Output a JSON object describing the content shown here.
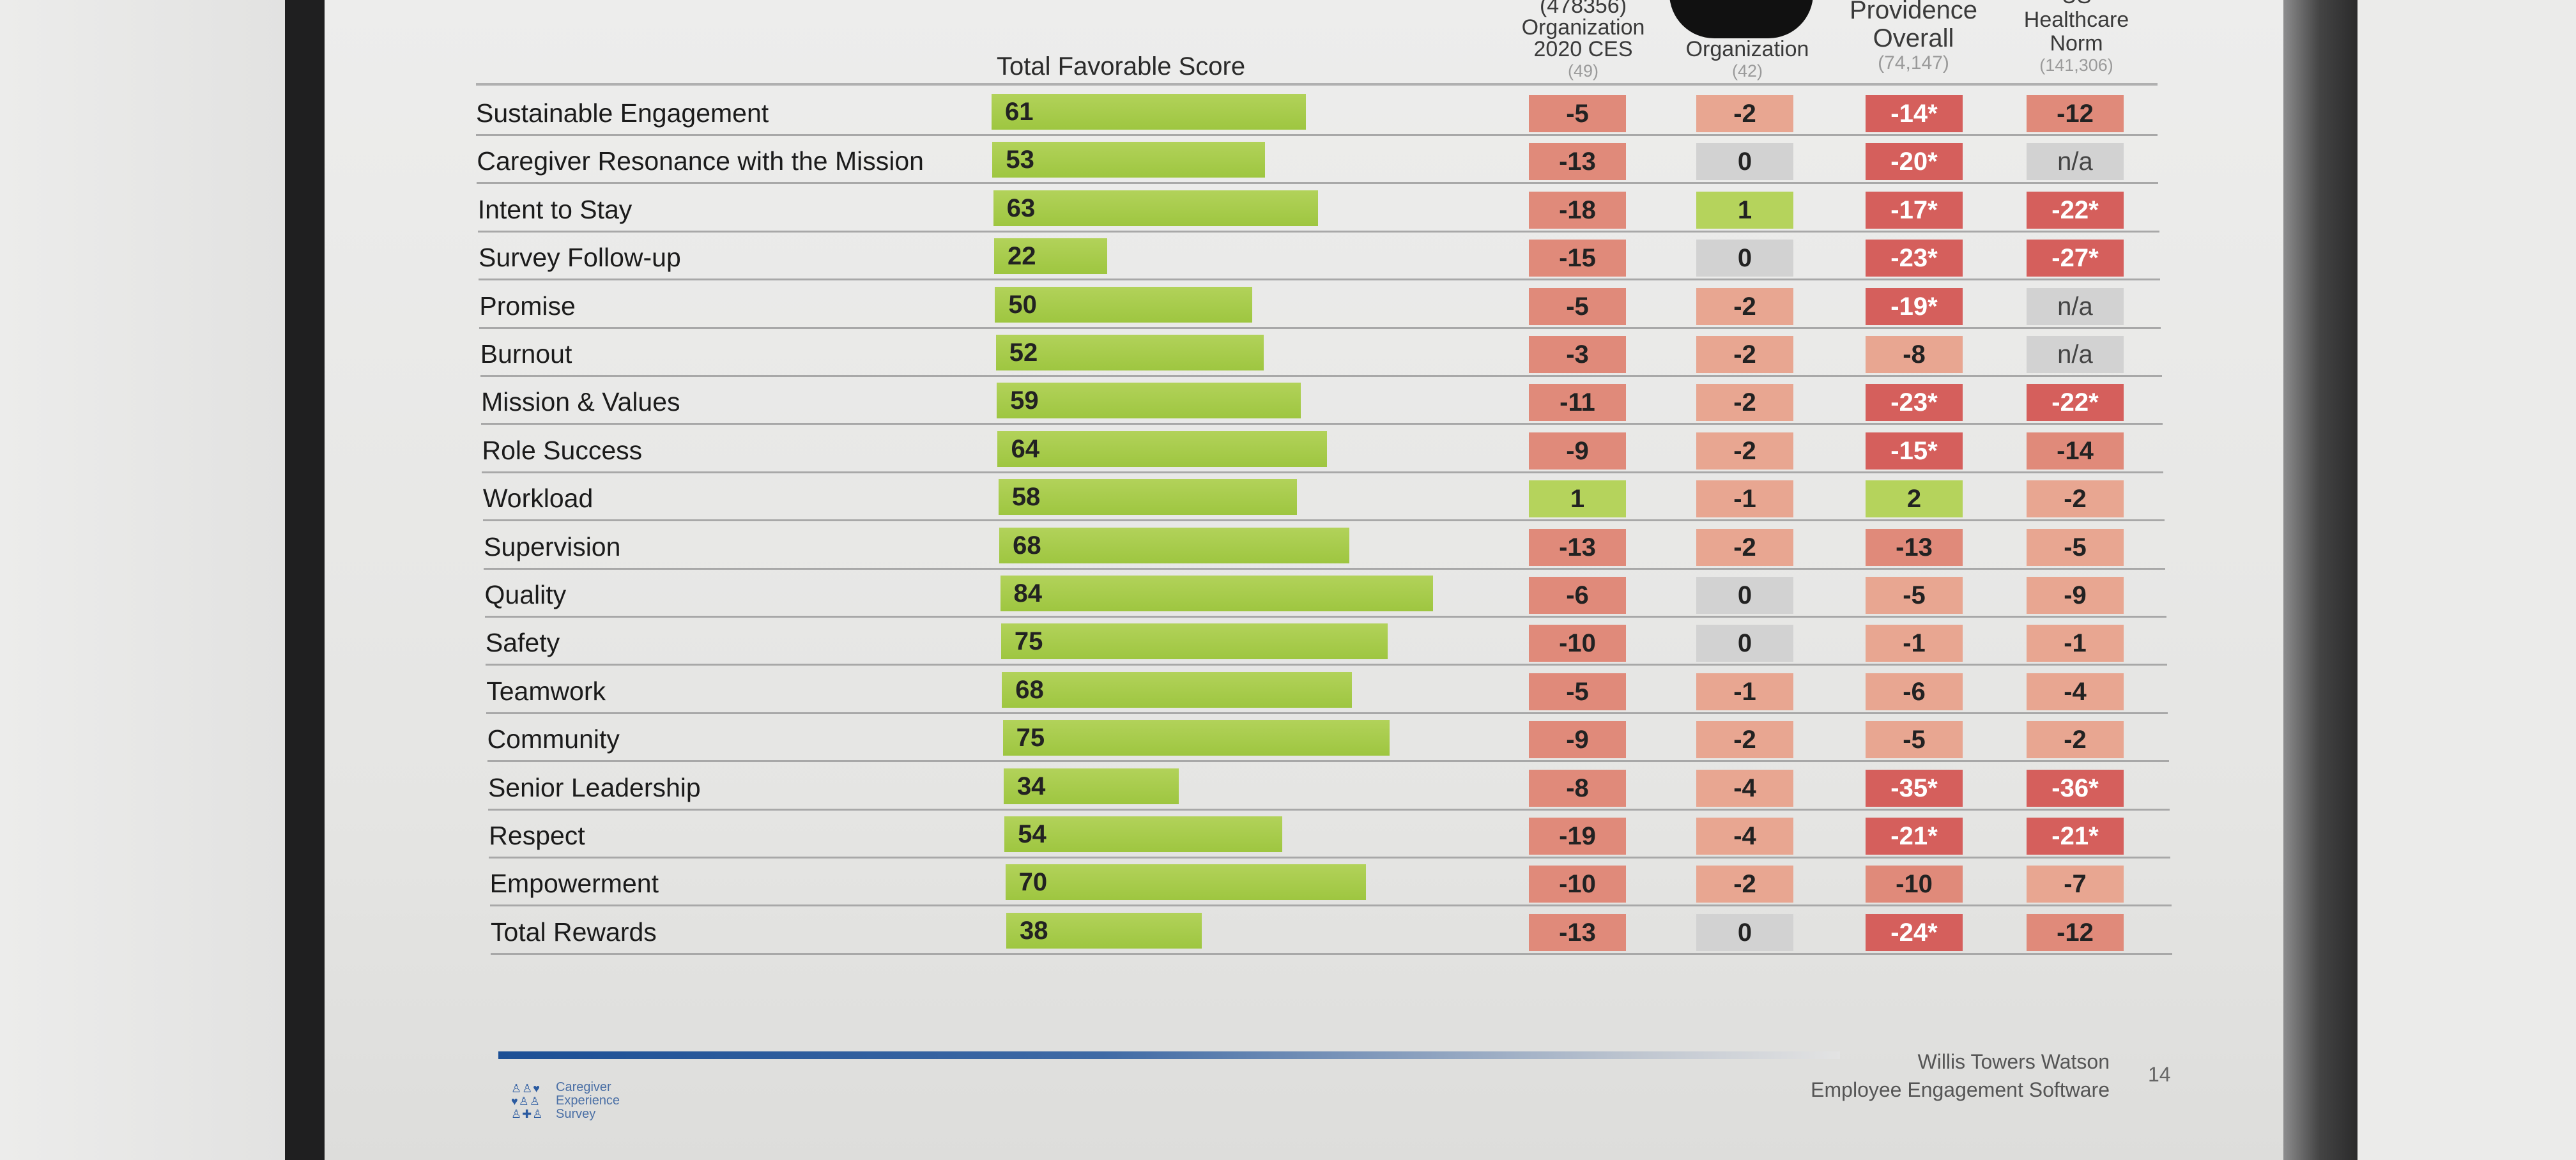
{
  "header": {
    "total_favorable": "Total Favorable Score",
    "columns": [
      {
        "lines": [
          "(478356)",
          "Organization",
          "2020 CES"
        ],
        "n": "(49)"
      },
      {
        "lines": [
          "Organization"
        ],
        "n": "(42)"
      },
      {
        "lines": [
          "Providence",
          "Overall"
        ],
        "n": "(74,147)"
      },
      {
        "lines": [
          "US",
          "Healthcare",
          "Norm"
        ],
        "n": "(141,306)"
      }
    ]
  },
  "rows": [
    {
      "label": "Sustainable Engagement",
      "score": 61,
      "d": [
        "-5",
        "-2",
        "-14*",
        "-12"
      ]
    },
    {
      "label": "Caregiver Resonance with the Mission",
      "score": 53,
      "d": [
        "-13",
        "0",
        "-20*",
        "n/a"
      ]
    },
    {
      "label": "Intent to Stay",
      "score": 63,
      "d": [
        "-18",
        "1",
        "-17*",
        "-22*"
      ]
    },
    {
      "label": "Survey Follow-up",
      "score": 22,
      "d": [
        "-15",
        "0",
        "-23*",
        "-27*"
      ]
    },
    {
      "label": "Promise",
      "score": 50,
      "d": [
        "-5",
        "-2",
        "-19*",
        "n/a"
      ]
    },
    {
      "label": "Burnout",
      "score": 52,
      "d": [
        "-3",
        "-2",
        "-8",
        "n/a"
      ]
    },
    {
      "label": "Mission & Values",
      "score": 59,
      "d": [
        "-11",
        "-2",
        "-23*",
        "-22*"
      ]
    },
    {
      "label": "Role Success",
      "score": 64,
      "d": [
        "-9",
        "-2",
        "-15*",
        "-14"
      ]
    },
    {
      "label": "Workload",
      "score": 58,
      "d": [
        "1",
        "-1",
        "2",
        "-2"
      ]
    },
    {
      "label": "Supervision",
      "score": 68,
      "d": [
        "-13",
        "-2",
        "-13",
        "-5"
      ]
    },
    {
      "label": "Quality",
      "score": 84,
      "d": [
        "-6",
        "0",
        "-5",
        "-9"
      ]
    },
    {
      "label": "Safety",
      "score": 75,
      "d": [
        "-10",
        "0",
        "-1",
        "-1"
      ]
    },
    {
      "label": "Teamwork",
      "score": 68,
      "d": [
        "-5",
        "-1",
        "-6",
        "-4"
      ]
    },
    {
      "label": "Community",
      "score": 75,
      "d": [
        "-9",
        "-2",
        "-5",
        "-2"
      ]
    },
    {
      "label": "Senior Leadership",
      "score": 34,
      "d": [
        "-8",
        "-4",
        "-35*",
        "-36*"
      ]
    },
    {
      "label": "Respect",
      "score": 54,
      "d": [
        "-19",
        "-4",
        "-21*",
        "-21*"
      ]
    },
    {
      "label": "Empowerment",
      "score": 70,
      "d": [
        "-10",
        "-2",
        "-10",
        "-7"
      ]
    },
    {
      "label": "Total Rewards",
      "score": 38,
      "d": [
        "-13",
        "0",
        "-24*",
        "-12"
      ]
    }
  ],
  "footer": {
    "logo_text": [
      "Caregiver",
      "Experience",
      "Survey"
    ],
    "company": "Willis Towers Watson",
    "product": "Employee Engagement Software",
    "page_number": "14"
  },
  "colors": {
    "bar": "#a7cc4c",
    "positive": "#b5d35c",
    "neutral": "#d2d2d2",
    "light_red": "#e8a691",
    "mid_red": "#e08a7a",
    "strong_red": "#d55f5c"
  }
}
